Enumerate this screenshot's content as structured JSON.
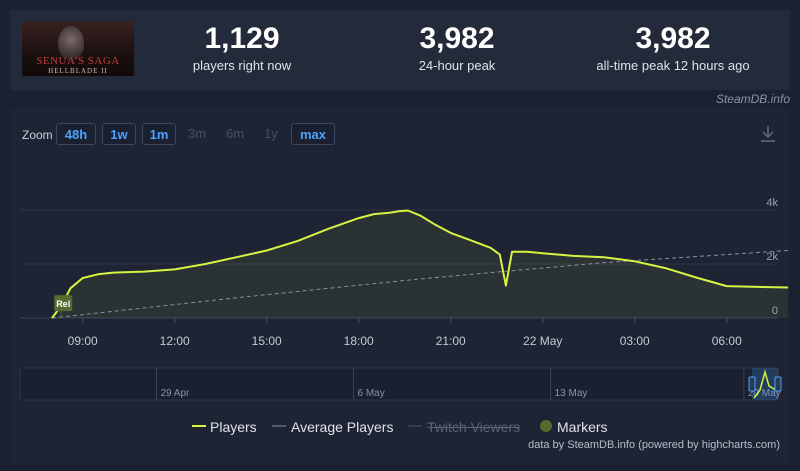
{
  "header": {
    "logo_text_line1": "SENUA'S SAGA",
    "logo_text_line2": "HELLBLADE II",
    "stats": [
      {
        "value": "1,129",
        "label": "players right now"
      },
      {
        "value": "3,982",
        "label": "24-hour peak"
      },
      {
        "value": "3,982",
        "label": "all-time peak 12 hours ago"
      }
    ],
    "watermark": "SteamDB.info"
  },
  "zoom": {
    "label": "Zoom",
    "buttons": [
      {
        "label": "48h",
        "active": true
      },
      {
        "label": "1w",
        "active": true
      },
      {
        "label": "1m",
        "active": true
      },
      {
        "label": "3m",
        "active": false
      },
      {
        "label": "6m",
        "active": false
      },
      {
        "label": "1y",
        "active": false
      },
      {
        "label": "max",
        "active": true
      }
    ]
  },
  "legend": {
    "players": "Players",
    "average": "Average Players",
    "twitch": "Twitch Viewers",
    "markers": "Markers"
  },
  "credits": "data by SteamDB.info (powered by highcharts.com)",
  "colors": {
    "players": "#d4f542",
    "average": "#8a8f9c",
    "marker": "#556b2f",
    "grid": "#2e3546"
  },
  "chart_data": {
    "type": "line",
    "x_unit": "hours since 08:00 (day before 22 May)",
    "x_ticks": [
      {
        "x": 1,
        "label": "09:00"
      },
      {
        "x": 4,
        "label": "12:00"
      },
      {
        "x": 7,
        "label": "15:00"
      },
      {
        "x": 10,
        "label": "18:00"
      },
      {
        "x": 13,
        "label": "21:00"
      },
      {
        "x": 16,
        "label": "22 May"
      },
      {
        "x": 19,
        "label": "03:00"
      },
      {
        "x": 22,
        "label": "06:00"
      }
    ],
    "y_ticks": [
      {
        "y": 0,
        "label": "0"
      },
      {
        "y": 2000,
        "label": "2k"
      },
      {
        "y": 4000,
        "label": "4k"
      }
    ],
    "ylim": [
      0,
      4000
    ],
    "series": [
      {
        "name": "Players",
        "points": [
          [
            0,
            0
          ],
          [
            0.3,
            450
          ],
          [
            0.6,
            1100
          ],
          [
            1.0,
            1480
          ],
          [
            1.5,
            1620
          ],
          [
            2.0,
            1680
          ],
          [
            3.0,
            1720
          ],
          [
            4.0,
            1800
          ],
          [
            5.0,
            2000
          ],
          [
            6.0,
            2250
          ],
          [
            7.0,
            2500
          ],
          [
            8.0,
            2850
          ],
          [
            9.0,
            3300
          ],
          [
            10.0,
            3700
          ],
          [
            10.5,
            3850
          ],
          [
            11.0,
            3900
          ],
          [
            11.3,
            3950
          ],
          [
            11.6,
            3982
          ],
          [
            12.0,
            3800
          ],
          [
            12.5,
            3450
          ],
          [
            13.0,
            3150
          ],
          [
            13.6,
            2900
          ],
          [
            14.3,
            2600
          ],
          [
            14.6,
            2350
          ],
          [
            14.8,
            1200
          ],
          [
            15.0,
            2450
          ],
          [
            15.5,
            2450
          ],
          [
            16.0,
            2400
          ],
          [
            17.0,
            2300
          ],
          [
            18.0,
            2250
          ],
          [
            19.0,
            2100
          ],
          [
            20.0,
            1850
          ],
          [
            21.0,
            1500
          ],
          [
            22.0,
            1180
          ],
          [
            23.0,
            1150
          ],
          [
            24.0,
            1129
          ]
        ]
      },
      {
        "name": "Average Players",
        "points": [
          [
            0,
            0
          ],
          [
            6,
            750
          ],
          [
            12,
            1450
          ],
          [
            18,
            2050
          ],
          [
            24,
            2500
          ]
        ]
      }
    ],
    "markers": [
      {
        "x": 0.3,
        "y": 550,
        "label": "Rel"
      }
    ],
    "navigator": {
      "labels": [
        {
          "pos": 0.18,
          "label": "29 Apr"
        },
        {
          "pos": 0.44,
          "label": "6 May"
        },
        {
          "pos": 0.7,
          "label": "13 May"
        },
        {
          "pos": 0.955,
          "label": "20 May"
        }
      ]
    }
  }
}
